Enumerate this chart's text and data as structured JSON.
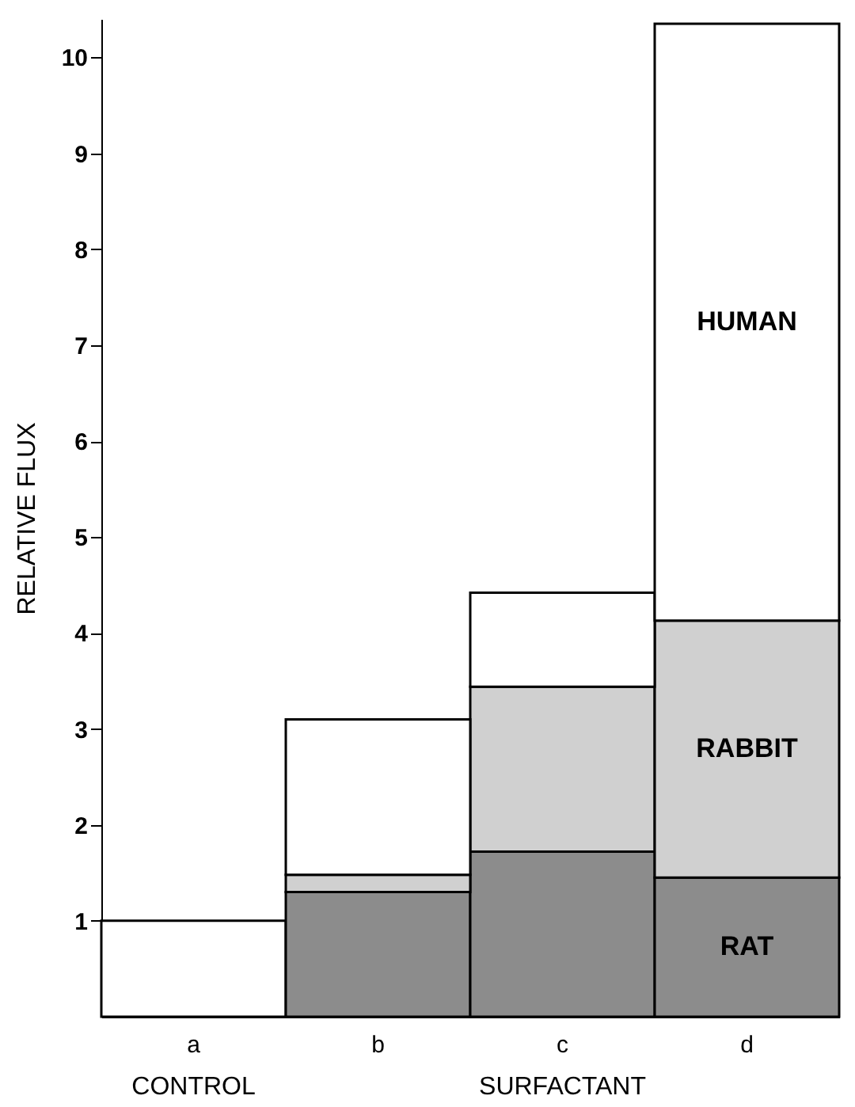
{
  "chart_data": {
    "type": "bar",
    "stacked": true,
    "ylabel": "RELATIVE FLUX",
    "categories": [
      "a",
      "b",
      "c",
      "d"
    ],
    "series": [
      {
        "color": "#ffffff",
        "values": [
          1.0,
          null,
          null,
          null
        ]
      },
      {
        "name": "RAT",
        "color": "#8c8c8c",
        "values": [
          null,
          1.3,
          1.72,
          1.45
        ]
      },
      {
        "name": "RABBIT",
        "color": "#d0d0d0",
        "values": [
          null,
          0.18,
          1.72,
          2.68
        ]
      },
      {
        "name": "HUMAN",
        "color": "#ffffff",
        "values": [
          null,
          1.62,
          0.98,
          6.22
        ]
      }
    ],
    "ylim": [
      0,
      10.4
    ],
    "yticks": [
      1,
      2,
      3,
      4,
      5,
      6,
      7,
      8,
      9,
      10
    ],
    "grid": false,
    "legend": false,
    "annotations": [
      "CONTROL",
      "SURFACTANT"
    ]
  }
}
